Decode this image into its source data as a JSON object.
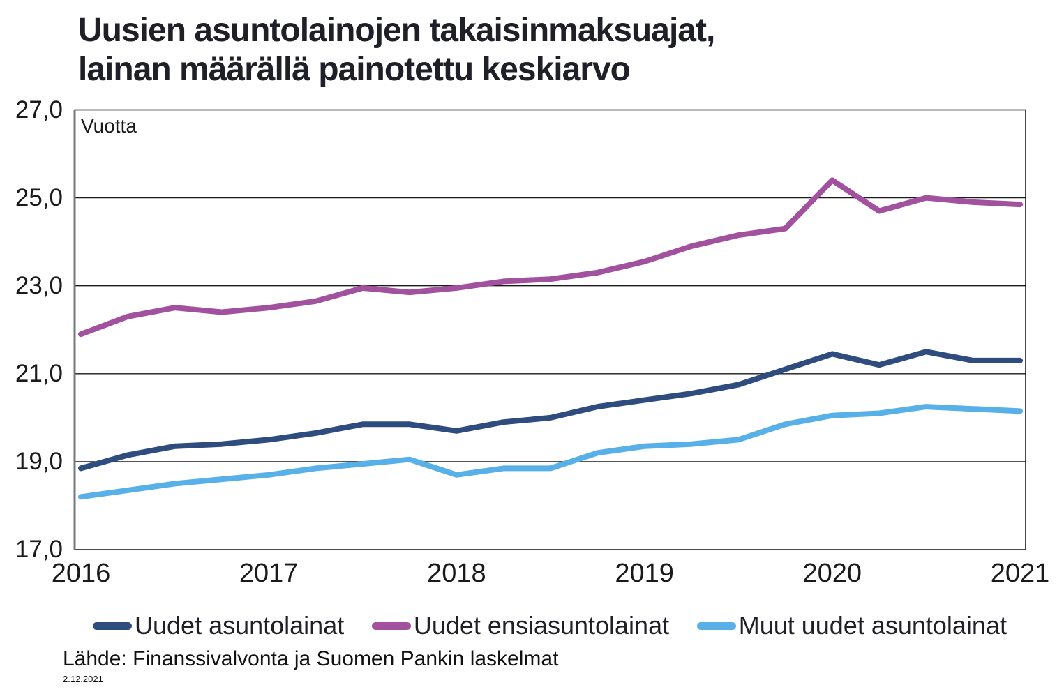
{
  "title": {
    "line1": "Uusien asuntolainojen takaisinmaksuajat,",
    "line2": "lainan määrällä painotettu keskiarvo"
  },
  "plot": {
    "unit_label": "Vuotta"
  },
  "chart_data": {
    "type": "line",
    "title": "Uusien asuntolainojen takaisinmaksuajat, lainan määrällä painotettu keskiarvo",
    "ylabel": "Vuotta",
    "xlabel": "",
    "ylim": [
      17.0,
      27.0
    ],
    "y_tick_step": 2.0,
    "grid": "horizontal",
    "legend_position": "bottom",
    "y_ticks": [
      {
        "value": 27.0,
        "label": "27,0"
      },
      {
        "value": 25.0,
        "label": "25,0"
      },
      {
        "value": 23.0,
        "label": "23,0"
      },
      {
        "value": 21.0,
        "label": "21,0"
      },
      {
        "value": 19.0,
        "label": "19,0"
      },
      {
        "value": 17.0,
        "label": "17,0"
      }
    ],
    "gridline_values": [
      25.0,
      23.0,
      21.0,
      19.0
    ],
    "x_ticks": [
      {
        "position": 0,
        "label": "2016"
      },
      {
        "position": 4,
        "label": "2017"
      },
      {
        "position": 8,
        "label": "2018"
      },
      {
        "position": 12,
        "label": "2019"
      },
      {
        "position": 16,
        "label": "2020"
      },
      {
        "position": 20,
        "label": "2021"
      }
    ],
    "categories": [
      "2016Q1",
      "2016Q2",
      "2016Q3",
      "2016Q4",
      "2017Q1",
      "2017Q2",
      "2017Q3",
      "2017Q4",
      "2018Q1",
      "2018Q2",
      "2018Q3",
      "2018Q4",
      "2019Q1",
      "2019Q2",
      "2019Q3",
      "2019Q4",
      "2020Q1",
      "2020Q2",
      "2020Q3",
      "2020Q4",
      "2021Q1"
    ],
    "series": [
      {
        "name": "Uudet asuntolainat",
        "color": "#2e4d7e",
        "values": [
          18.85,
          19.15,
          19.35,
          19.4,
          19.5,
          19.65,
          19.85,
          19.85,
          19.7,
          19.9,
          20.0,
          20.25,
          20.4,
          20.55,
          20.75,
          21.1,
          21.45,
          21.2,
          21.5,
          21.3,
          21.3
        ]
      },
      {
        "name": "Uudet ensiasuntolainat",
        "color": "#a1519d",
        "values": [
          21.9,
          22.3,
          22.5,
          22.4,
          22.5,
          22.65,
          22.95,
          22.85,
          22.95,
          23.1,
          23.15,
          23.3,
          23.55,
          23.9,
          24.15,
          24.3,
          25.4,
          24.7,
          25.0,
          24.9,
          24.85
        ]
      },
      {
        "name": "Muut uudet asuntolainat",
        "color": "#57b0e8",
        "values": [
          18.2,
          18.35,
          18.5,
          18.6,
          18.7,
          18.85,
          18.95,
          19.05,
          18.7,
          18.85,
          18.85,
          19.2,
          19.35,
          19.4,
          19.5,
          19.85,
          20.05,
          20.1,
          20.25,
          20.2,
          20.15
        ]
      }
    ]
  },
  "legend": {
    "items": [
      "Uudet asuntolainat",
      "Uudet ensiasuntolainat",
      "Muut uudet asuntolainat"
    ]
  },
  "source": {
    "text": "Lähde: Finanssivalvonta ja Suomen Pankin laskelmat",
    "date": "2.12.2021"
  }
}
